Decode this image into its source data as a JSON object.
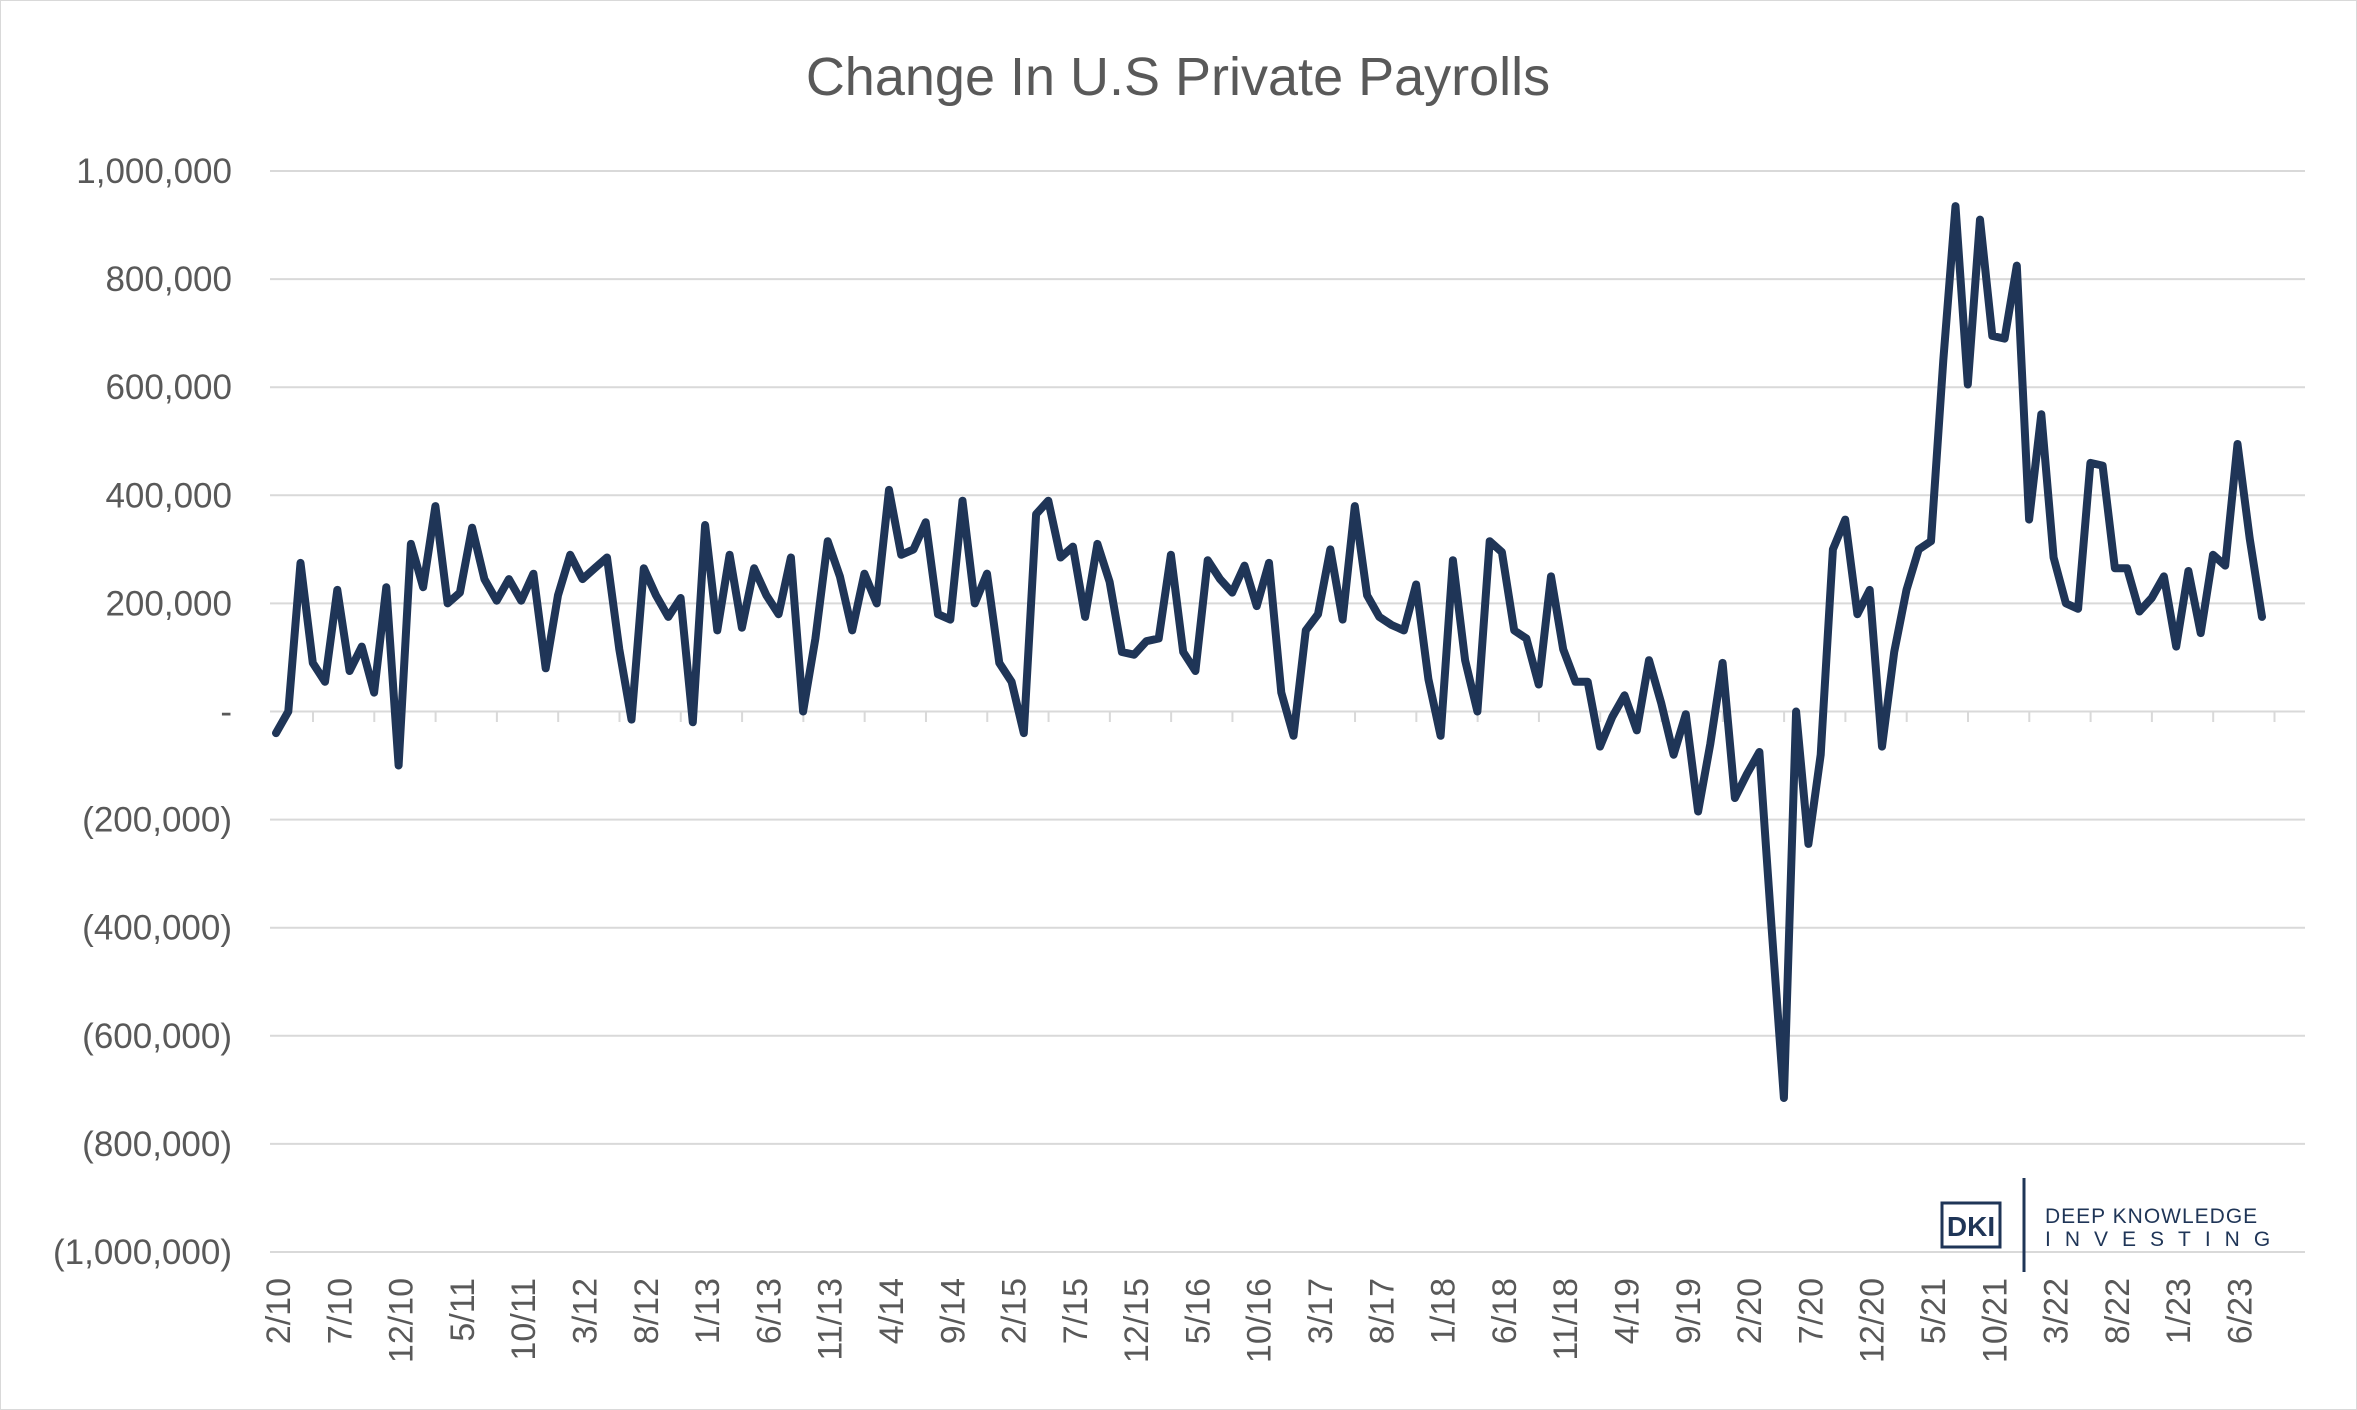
{
  "chart_data": {
    "type": "line",
    "title": "Change In U.S Private Payrolls",
    "xlabel": "",
    "ylabel": "",
    "ylim": [
      -1000000,
      1000000
    ],
    "yticks": [
      {
        "value": 1000000,
        "label": "1,000,000"
      },
      {
        "value": 800000,
        "label": "800,000"
      },
      {
        "value": 600000,
        "label": "600,000"
      },
      {
        "value": 400000,
        "label": "400,000"
      },
      {
        "value": 200000,
        "label": "200,000"
      },
      {
        "value": 0,
        "label": "-"
      },
      {
        "value": -200000,
        "label": "(200,000)"
      },
      {
        "value": -400000,
        "label": "(400,000)"
      },
      {
        "value": -600000,
        "label": "(600,000)"
      },
      {
        "value": -800000,
        "label": "(800,000)"
      },
      {
        "value": -1000000,
        "label": "(1,000,000)"
      }
    ],
    "xticks": [
      "2/10",
      "7/10",
      "12/10",
      "5/11",
      "10/11",
      "3/12",
      "8/12",
      "1/13",
      "6/13",
      "11/13",
      "4/14",
      "9/14",
      "2/15",
      "7/15",
      "12/15",
      "5/16",
      "10/16",
      "3/17",
      "8/17",
      "1/18",
      "6/18",
      "11/18",
      "4/19",
      "9/19",
      "2/20",
      "7/20",
      "12/20",
      "5/21",
      "10/21",
      "3/22",
      "8/22",
      "1/23",
      "6/23"
    ],
    "grid": true,
    "legend": "none",
    "color": "#1f3557",
    "series": [
      {
        "values": [
          -40000,
          0,
          275000,
          90000,
          55000,
          225000,
          75000,
          120000,
          35000,
          230000,
          -100000,
          310000,
          230000,
          380000,
          200000,
          220000,
          340000,
          245000,
          205000,
          245000,
          205000,
          255000,
          80000,
          215000,
          290000,
          245000,
          265000,
          285000,
          115000,
          -15000,
          265000,
          215000,
          175000,
          210000,
          -20000,
          345000,
          150000,
          290000,
          155000,
          265000,
          215000,
          180000,
          285000,
          0,
          135000,
          315000,
          250000,
          150000,
          255000,
          200000,
          410000,
          290000,
          300000,
          350000,
          180000,
          170000,
          390000,
          200000,
          255000,
          90000,
          55000,
          -40000,
          365000,
          390000,
          285000,
          305000,
          175000,
          310000,
          240000,
          110000,
          105000,
          130000,
          135000,
          290000,
          110000,
          75000,
          280000,
          245000,
          220000,
          270000,
          195000,
          275000,
          35000,
          -45000,
          150000,
          180000,
          300000,
          170000,
          380000,
          215000,
          175000,
          160000,
          150000,
          235000,
          60000,
          -45000,
          280000,
          95000,
          0,
          315000,
          295000,
          150000,
          135000,
          50000,
          250000,
          115000,
          55000,
          55000,
          -65000,
          -10000,
          30000,
          -35000,
          95000,
          15000,
          -80000,
          -5000,
          -185000,
          -60000,
          90000,
          -160000,
          -115000,
          -75000,
          -400000,
          -715000,
          0,
          -245000,
          -80000,
          300000,
          355000,
          180000,
          225000,
          -65000,
          110000,
          225000,
          300000,
          315000,
          650000,
          935000,
          605000,
          910000,
          695000,
          690000,
          825000,
          355000,
          550000,
          285000,
          200000,
          190000,
          460000,
          455000,
          265000,
          265000,
          185000,
          210000,
          250000,
          120000,
          260000,
          145000,
          290000,
          270000,
          495000,
          320000,
          175000
        ]
      }
    ],
    "logo": {
      "mark": "DKI",
      "line1": "DEEP KNOWLEDGE",
      "line2": "INVESTING"
    }
  }
}
